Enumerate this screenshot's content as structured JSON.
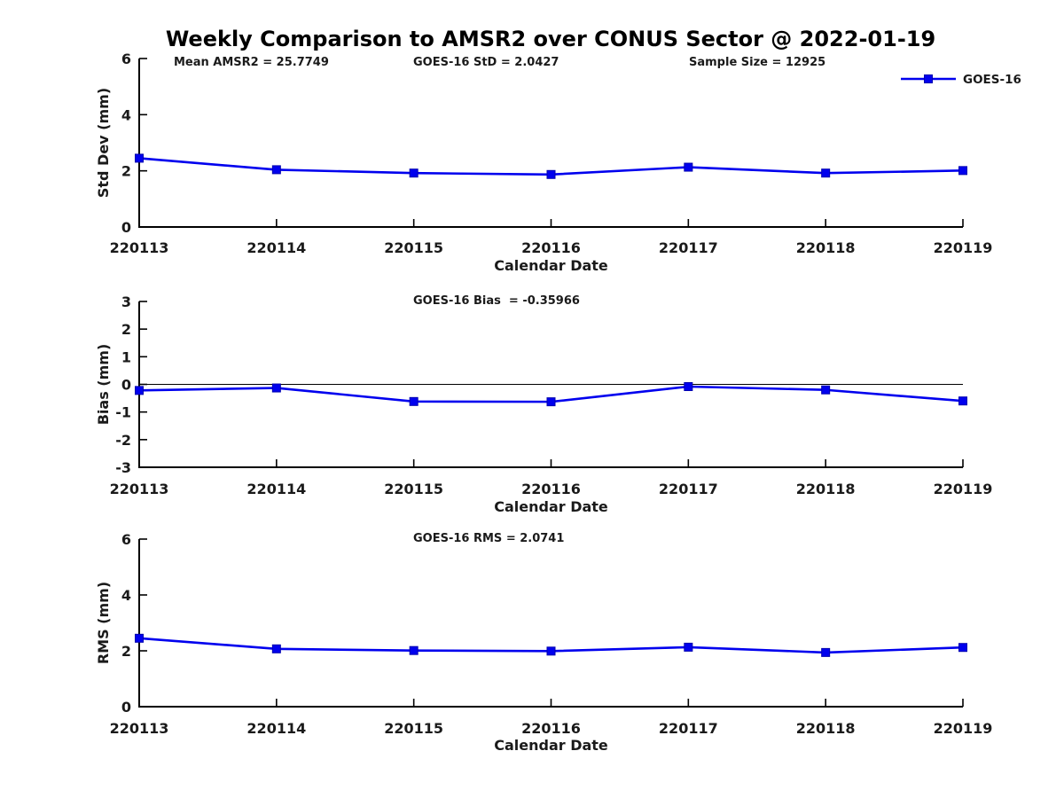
{
  "page_title": "Weekly Comparison to AMSR2 over CONUS Sector @ 2022-01-19",
  "colors": {
    "series_line": "#0000ee",
    "axis": "#000000",
    "text": "#1a1a1a",
    "background": "#ffffff"
  },
  "legend": {
    "label": "GOES-16",
    "position": "top-right",
    "marker": "filled-square"
  },
  "chart_data": [
    {
      "type": "line",
      "title": "",
      "annotations": [
        "Mean AMSR2 = 25.7749",
        "GOES-16 StD = 2.0427",
        "Sample Size = 12925"
      ],
      "xlabel": "Calendar Date",
      "ylabel": "Std Dev (mm)",
      "ylim": [
        0,
        6
      ],
      "yticks": [
        0,
        2,
        4,
        6
      ],
      "categories": [
        "220113",
        "220114",
        "220115",
        "220116",
        "220117",
        "220118",
        "220119"
      ],
      "series": [
        {
          "name": "GOES-16",
          "values": [
            2.45,
            2.04,
            1.92,
            1.87,
            2.13,
            1.92,
            2.01
          ]
        }
      ],
      "zero_line": false,
      "legend_entries": [
        "GOES-16"
      ],
      "grid": false
    },
    {
      "type": "line",
      "title": "",
      "annotations": [
        "GOES-16 Bias  = -0.35966"
      ],
      "xlabel": "Calendar Date",
      "ylabel": "Bias (mm)",
      "ylim": [
        -3,
        3
      ],
      "yticks": [
        3,
        2,
        1,
        0,
        -1,
        -2,
        -3
      ],
      "categories": [
        "220113",
        "220114",
        "220115",
        "220116",
        "220117",
        "220118",
        "220119"
      ],
      "series": [
        {
          "name": "GOES-16",
          "values": [
            -0.22,
            -0.13,
            -0.62,
            -0.63,
            -0.08,
            -0.2,
            -0.6
          ]
        }
      ],
      "zero_line": true,
      "legend_entries": [],
      "grid": false
    },
    {
      "type": "line",
      "title": "",
      "annotations": [
        "GOES-16 RMS = 2.0741"
      ],
      "xlabel": "Calendar Date",
      "ylabel": "RMS (mm)",
      "ylim": [
        0,
        6
      ],
      "yticks": [
        0,
        2,
        4,
        6
      ],
      "categories": [
        "220113",
        "220114",
        "220115",
        "220116",
        "220117",
        "220118",
        "220119"
      ],
      "series": [
        {
          "name": "GOES-16",
          "values": [
            2.45,
            2.07,
            2.01,
            1.99,
            2.13,
            1.94,
            2.12
          ]
        }
      ],
      "zero_line": false,
      "legend_entries": [],
      "grid": false
    }
  ]
}
